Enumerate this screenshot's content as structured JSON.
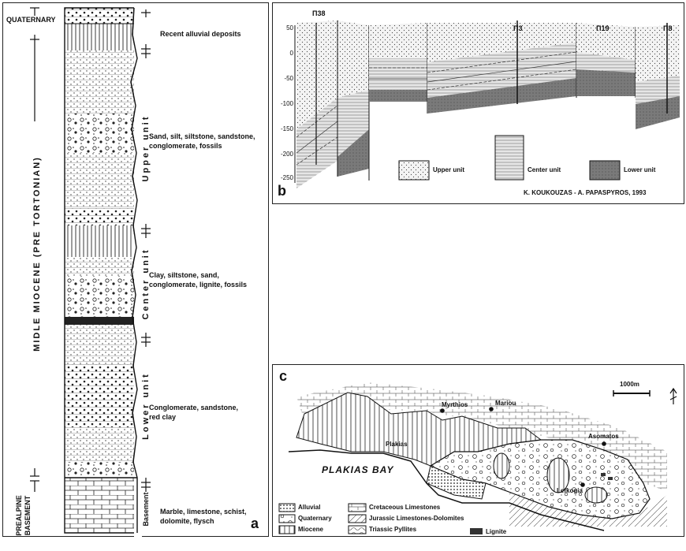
{
  "panel_a": {
    "letter": "a",
    "age_labels": {
      "quaternary": "QUATERNARY",
      "miocene": "MIDLE MIOCENE (PRE TORTONIAN)",
      "basement": "PREALPINE BASEMENT"
    },
    "unit_labels": {
      "upper": "Upper unit",
      "center": "Center unit",
      "lower": "Lower unit",
      "basement": "Basement"
    },
    "descriptions": {
      "alluvial": "Recent alluvial deposits",
      "upper_1": "Sand, silt, siltstone, sandstone,",
      "upper_2": "conglomerate, fossils",
      "center_1": "Clay, siltstone, sand,",
      "center_2": "conglomerate, lignite, fossils",
      "lower_1": "Conglomerate, sandstone,",
      "lower_2": "red clay",
      "base_1": "Marble, limestone, schist,",
      "base_2": "dolomite, flysch"
    }
  },
  "panel_b": {
    "letter": "b",
    "wells": [
      "Π38",
      "Π3",
      "Π19",
      "Π8"
    ],
    "y_ticks": [
      "50",
      "0",
      "-50",
      "-100",
      "-150",
      "-200",
      "-250"
    ],
    "legend": [
      "Upper unit",
      "Center unit",
      "Lower unit"
    ],
    "credit": "K. KOUKOUZAS - A. PAPASPYROS, 1993"
  },
  "panel_c": {
    "letter": "c",
    "scale": "1000m",
    "places": {
      "myrthios": "Myrthios",
      "mariou": "Mariou",
      "asomatos": "Asomatos",
      "plakias": "Plakias",
      "lefkogia": "Lefkogia",
      "bay": "PLAKIAS BAY"
    },
    "legend": {
      "alluvial": "Alluvial",
      "quaternary": "Quaternary",
      "miocene": "Miocene",
      "cretaceous": "Cretaceous Limestones",
      "jurassic": "Jurassic Limestones-Dolomites",
      "triassic": "Triassic Pyllites",
      "lignite": "Lignite"
    }
  }
}
